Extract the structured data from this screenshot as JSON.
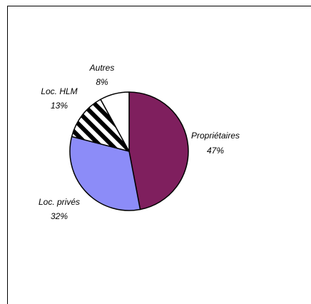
{
  "chart_data": {
    "type": "pie",
    "title": "",
    "slices": [
      {
        "label": "Propriétaires",
        "value": 47,
        "value_label": "47%",
        "color": "#7f1f5e",
        "pattern": "solid"
      },
      {
        "label": "Loc. privés",
        "value": 32,
        "value_label": "32%",
        "color": "#8c8cf8",
        "pattern": "solid"
      },
      {
        "label": "Loc. HLM",
        "value": 13,
        "value_label": "13%",
        "color": "#000000",
        "pattern": "diagonal-stripes"
      },
      {
        "label": "Autres",
        "value": 8,
        "value_label": "8%",
        "color": "#ffffff",
        "pattern": "solid"
      }
    ],
    "start_angle": "12 o'clock",
    "direction": "clockwise",
    "legend": "none",
    "data_labels": "outside"
  }
}
